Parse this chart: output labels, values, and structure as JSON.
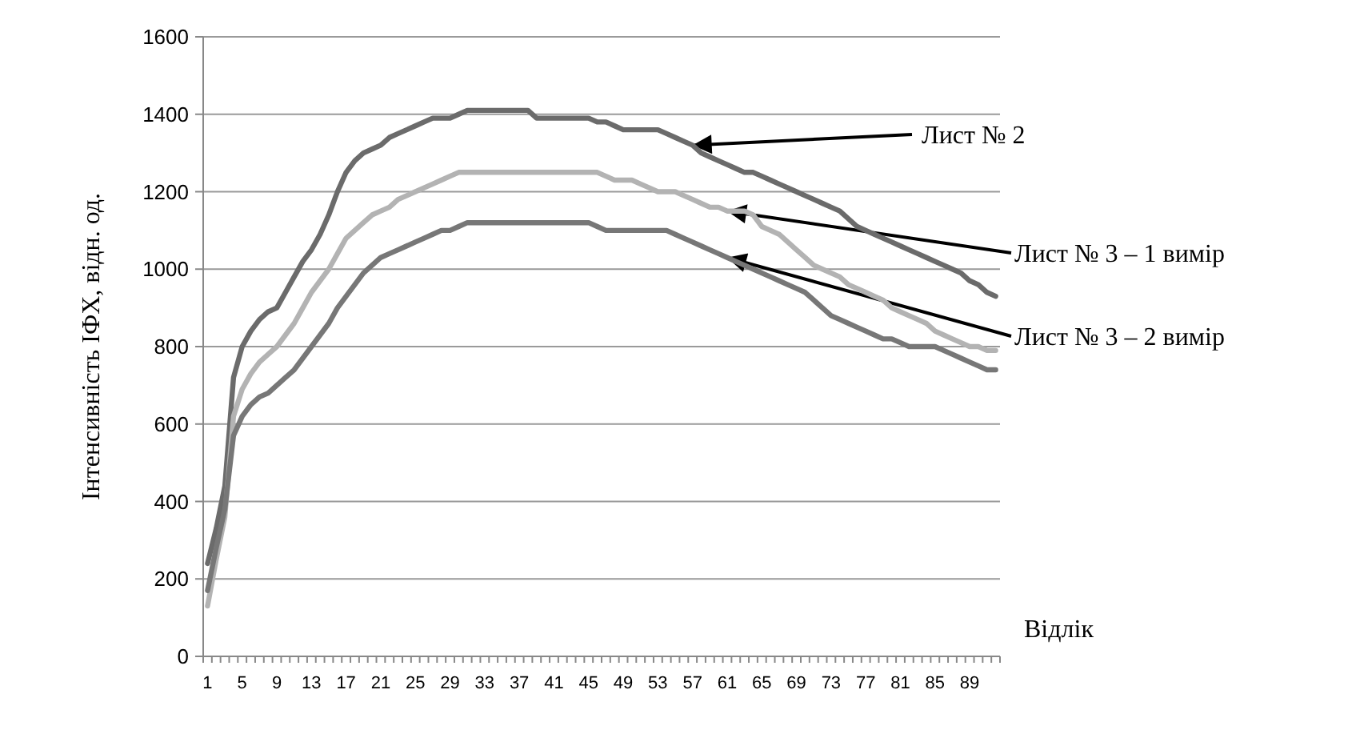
{
  "chart_data": {
    "type": "line",
    "xlabel": "Відлік",
    "ylabel": "Інтенсивність ІФХ, відн. од.",
    "categories": [
      "1",
      null,
      null,
      null,
      "5",
      null,
      null,
      null,
      "9",
      null,
      null,
      null,
      "13",
      null,
      null,
      null,
      "17",
      null,
      null,
      null,
      "21",
      null,
      null,
      null,
      "25",
      null,
      null,
      null,
      "29",
      null,
      null,
      null,
      "33",
      null,
      null,
      null,
      "37",
      null,
      null,
      null,
      "41",
      null,
      null,
      null,
      "45",
      null,
      null,
      null,
      "49",
      null,
      null,
      null,
      "53",
      null,
      null,
      null,
      "57",
      null,
      null,
      null,
      "61",
      null,
      null,
      null,
      "65",
      null,
      null,
      null,
      "69",
      null,
      null,
      null,
      "73",
      null,
      null,
      null,
      "77",
      null,
      null,
      null,
      "81",
      null,
      null,
      null,
      "85",
      null,
      null,
      null,
      "89",
      null,
      null,
      null
    ],
    "series": [
      {
        "color": "#6b6b6b",
        "values": [
          240,
          330,
          440,
          720,
          800,
          840,
          870,
          890,
          900,
          940,
          980,
          1020,
          1050,
          1090,
          1140,
          1200,
          1250,
          1280,
          1300,
          1310,
          1320,
          1340,
          1350,
          1360,
          1370,
          1380,
          1390,
          1390,
          1390,
          1400,
          1410,
          1410,
          1410,
          1410,
          1410,
          1410,
          1410,
          1410,
          1390,
          1390,
          1390,
          1390,
          1390,
          1390,
          1390,
          1380,
          1380,
          1370,
          1360,
          1360,
          1360,
          1360,
          1360,
          1350,
          1340,
          1330,
          1320,
          1300,
          1290,
          1280,
          1270,
          1260,
          1250,
          1250,
          1240,
          1230,
          1220,
          1210,
          1200,
          1190,
          1180,
          1170,
          1160,
          1150,
          1130,
          1110,
          1100,
          1090,
          1080,
          1070,
          1060,
          1050,
          1040,
          1030,
          1020,
          1010,
          1000,
          990,
          970,
          960,
          940,
          930
        ]
      },
      {
        "color": "#b3b3b3",
        "values": [
          130,
          250,
          360,
          620,
          690,
          730,
          760,
          780,
          800,
          830,
          860,
          900,
          940,
          970,
          1000,
          1040,
          1080,
          1100,
          1120,
          1140,
          1150,
          1160,
          1180,
          1190,
          1200,
          1210,
          1220,
          1230,
          1240,
          1250,
          1250,
          1250,
          1250,
          1250,
          1250,
          1250,
          1250,
          1250,
          1250,
          1250,
          1250,
          1250,
          1250,
          1250,
          1250,
          1250,
          1240,
          1230,
          1230,
          1230,
          1220,
          1210,
          1200,
          1200,
          1200,
          1190,
          1180,
          1170,
          1160,
          1160,
          1150,
          1150,
          1150,
          1140,
          1110,
          1100,
          1090,
          1070,
          1050,
          1030,
          1010,
          1000,
          990,
          980,
          960,
          950,
          940,
          930,
          920,
          900,
          890,
          880,
          870,
          860,
          840,
          830,
          820,
          810,
          800,
          800,
          790,
          790
        ]
      },
      {
        "color": "#777777",
        "values": [
          170,
          280,
          380,
          570,
          620,
          650,
          670,
          680,
          700,
          720,
          740,
          770,
          800,
          830,
          860,
          900,
          930,
          960,
          990,
          1010,
          1030,
          1040,
          1050,
          1060,
          1070,
          1080,
          1090,
          1100,
          1100,
          1110,
          1120,
          1120,
          1120,
          1120,
          1120,
          1120,
          1120,
          1120,
          1120,
          1120,
          1120,
          1120,
          1120,
          1120,
          1120,
          1110,
          1100,
          1100,
          1100,
          1100,
          1100,
          1100,
          1100,
          1100,
          1090,
          1080,
          1070,
          1060,
          1050,
          1040,
          1030,
          1020,
          1010,
          1000,
          990,
          980,
          970,
          960,
          950,
          940,
          920,
          900,
          880,
          870,
          860,
          850,
          840,
          830,
          820,
          820,
          810,
          800,
          800,
          800,
          800,
          790,
          780,
          770,
          760,
          750,
          740,
          740
        ]
      }
    ],
    "ylim": [
      0,
      1600
    ],
    "yticks": [
      0,
      200,
      400,
      600,
      800,
      1000,
      1200,
      1400,
      1600
    ],
    "grid": "y",
    "marker": "none",
    "line_style": "solid",
    "annotations": [
      {
        "text": "Лист № 2",
        "x": "57",
        "y": 1320
      },
      {
        "text": "Лист № 3 – 1 вимір",
        "x": "61",
        "y": 1150
      },
      {
        "text": "Лист № 3 – 2 вимір",
        "x": "61",
        "y": 1030
      }
    ]
  }
}
